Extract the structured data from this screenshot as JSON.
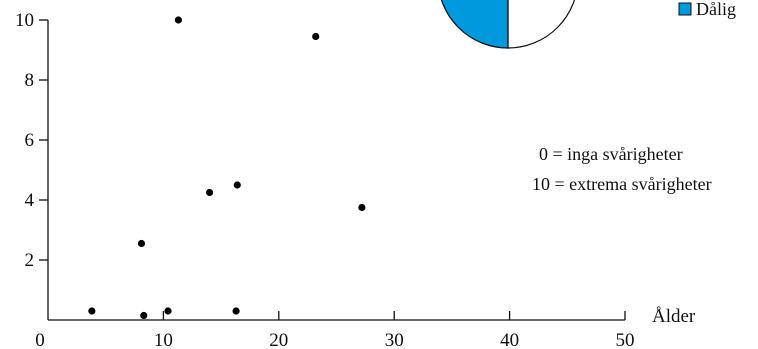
{
  "chart_data": [
    {
      "type": "scatter",
      "xlabel": "Ålder",
      "ylabel": "",
      "xlim": [
        0,
        50
      ],
      "ylim": [
        0,
        10
      ],
      "x_ticks": [
        "0",
        "10",
        "20",
        "30",
        "40",
        "50"
      ],
      "y_ticks": [
        "2",
        "4",
        "6",
        "8",
        "10"
      ],
      "grid": false,
      "points": [
        {
          "x": 3.8,
          "y": 0.3
        },
        {
          "x": 8.1,
          "y": 2.55
        },
        {
          "x": 8.3,
          "y": 0.15
        },
        {
          "x": 10.4,
          "y": 0.3
        },
        {
          "x": 11.3,
          "y": 10.0
        },
        {
          "x": 14.0,
          "y": 4.25
        },
        {
          "x": 16.3,
          "y": 0.3
        },
        {
          "x": 16.4,
          "y": 4.5
        },
        {
          "x": 23.2,
          "y": 9.45
        },
        {
          "x": 27.2,
          "y": 3.75
        }
      ],
      "annotations": [
        "0 = inga svårigheter",
        "10 = extrema svårigheter"
      ],
      "point_color": "#000000"
    },
    {
      "type": "pie",
      "legend": [
        "Dålig"
      ],
      "slices": [
        {
          "label": "Dålig",
          "value": 25,
          "color": "#0099dd"
        },
        {
          "label": "",
          "value": 75,
          "color": "#ffffff"
        }
      ],
      "legend_position": "right"
    }
  ]
}
